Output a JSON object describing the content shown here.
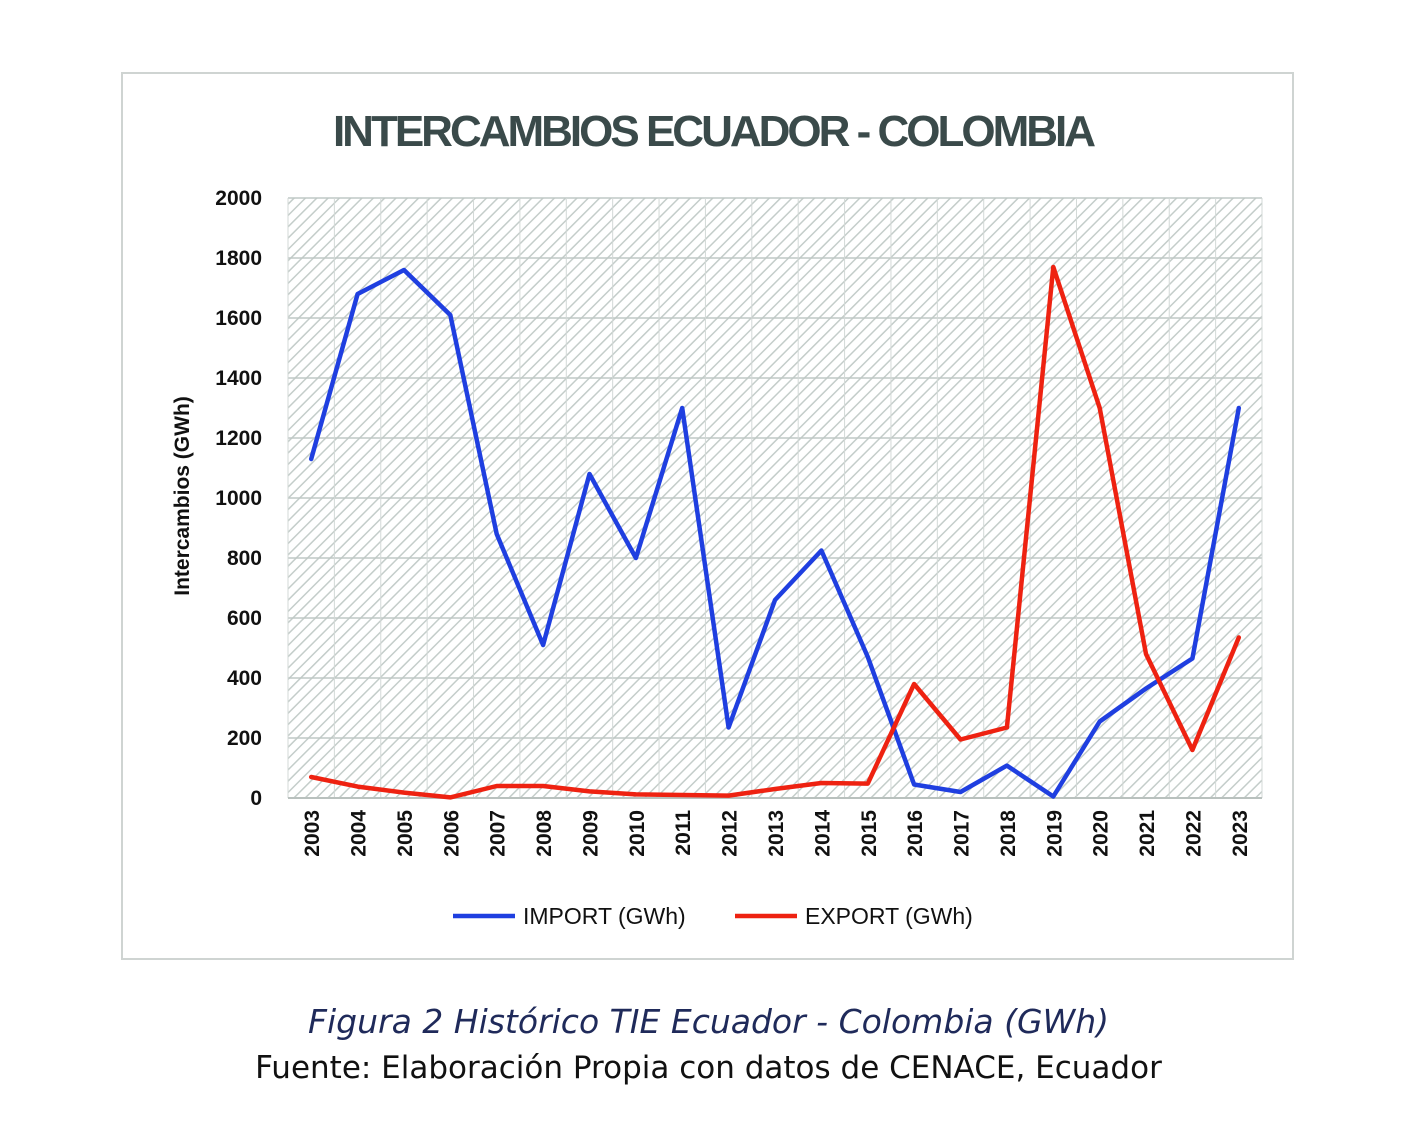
{
  "chart_data": {
    "type": "line",
    "title": "INTERCAMBIOS ECUADOR - COLOMBIA",
    "ylabel": "Intercambios (GWh)",
    "xlabel": "",
    "ylim": [
      0,
      2000
    ],
    "yticks": [
      "0",
      "200",
      "400",
      "600",
      "800",
      "1000",
      "1200",
      "1400",
      "1600",
      "1800",
      "2000"
    ],
    "categories": [
      "2003",
      "2004",
      "2005",
      "2006",
      "2007",
      "2008",
      "2009",
      "2010",
      "2011",
      "2012",
      "2013",
      "2014",
      "2015",
      "2016",
      "2017",
      "2018",
      "2019",
      "2020",
      "2021",
      "2022",
      "2023"
    ],
    "legend_position": "bottom",
    "background": "hatched",
    "series": [
      {
        "name": "IMPORT (GWh)",
        "color": "#1f3fe0",
        "values": [
          1130,
          1680,
          1760,
          1610,
          880,
          510,
          1080,
          800,
          1300,
          235,
          660,
          825,
          470,
          45,
          20,
          108,
          5,
          255,
          365,
          465,
          1300
        ]
      },
      {
        "name": "EXPORT (GWh)",
        "color": "#ee2211",
        "values": [
          70,
          38,
          18,
          2,
          40,
          40,
          22,
          12,
          10,
          8,
          30,
          50,
          48,
          380,
          195,
          235,
          1770,
          1300,
          480,
          160,
          535
        ]
      }
    ]
  },
  "caption": "Figura 2 Histórico TIE Ecuador - Colombia (GWh)",
  "source": "Fuente: Elaboración Propia con datos de CENACE, Ecuador"
}
